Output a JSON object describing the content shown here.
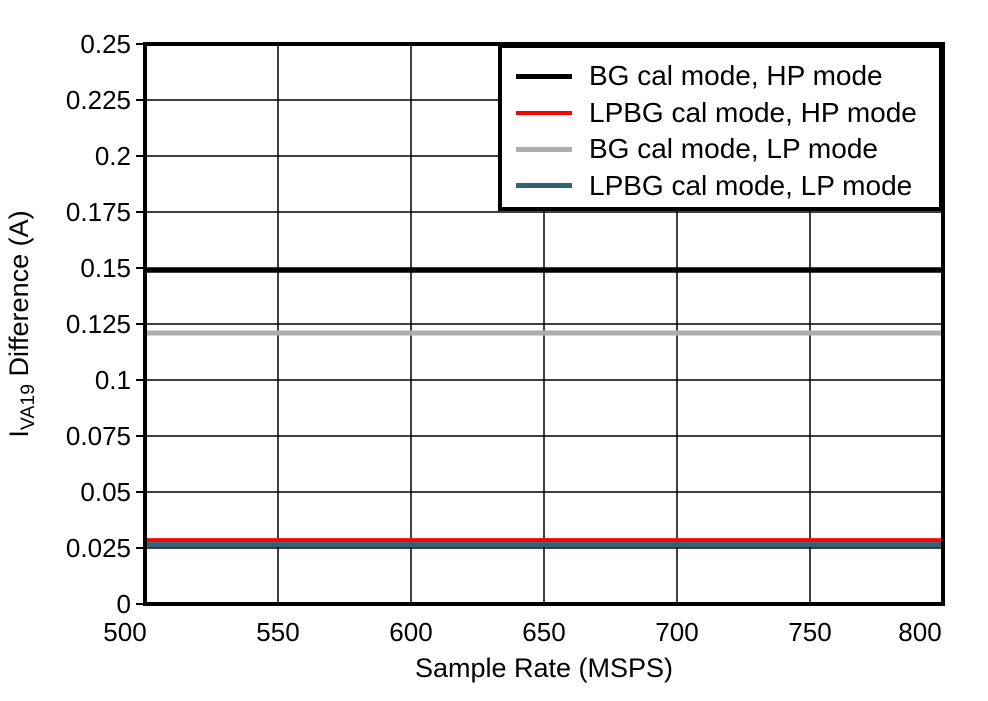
{
  "colors": {
    "background": "#ffffff",
    "axis": "#000000",
    "grid": "#000000",
    "series_black": "#000000",
    "series_red": "#FF0000",
    "series_gray": "#ADADAD",
    "series_teal": "#2E6374"
  },
  "chart_data": {
    "type": "line",
    "title": "",
    "xlabel": "Sample Rate (MSPS)",
    "ylabel": {
      "prefix": "I",
      "sub": "VA19",
      "suffix": " Difference (A)"
    },
    "xlim": [
      500,
      800
    ],
    "ylim": [
      0,
      0.25
    ],
    "grid": true,
    "legend_position": "top-right",
    "x_tick_values": [
      500,
      550,
      600,
      650,
      700,
      750,
      800
    ],
    "x_tick_labels": [
      "500",
      "550",
      "600",
      "650",
      "700",
      "750",
      "800"
    ],
    "y_tick_values": [
      0,
      0.025,
      0.05,
      0.075,
      0.1,
      0.125,
      0.15,
      0.175,
      0.2,
      0.225,
      0.25
    ],
    "y_tick_labels": [
      "0",
      "0.025",
      "0.05",
      "0.075",
      "0.1",
      "0.125",
      "0.15",
      "0.175",
      "0.2",
      "0.225",
      "0.25"
    ],
    "x": [
      500,
      550,
      600,
      650,
      700,
      750,
      800
    ],
    "series": [
      {
        "name": "BG cal mode, HP mode",
        "color": "#000000",
        "stroke_width": 5,
        "values": [
          0.149,
          0.149,
          0.149,
          0.149,
          0.149,
          0.149,
          0.149
        ]
      },
      {
        "name": "LPBG cal mode, HP mode",
        "color": "#FF0000",
        "stroke_width": 4,
        "values": [
          0.0285,
          0.0285,
          0.0285,
          0.0285,
          0.0285,
          0.0285,
          0.0285
        ]
      },
      {
        "name": "BG cal mode, LP mode",
        "color": "#ADADAD",
        "stroke_width": 5,
        "values": [
          0.121,
          0.121,
          0.121,
          0.121,
          0.121,
          0.121,
          0.121
        ]
      },
      {
        "name": "LPBG cal mode, LP mode",
        "color": "#2E6374",
        "stroke_width": 5,
        "values": [
          0.0265,
          0.0265,
          0.0265,
          0.0265,
          0.0265,
          0.0265,
          0.0265
        ]
      }
    ]
  }
}
